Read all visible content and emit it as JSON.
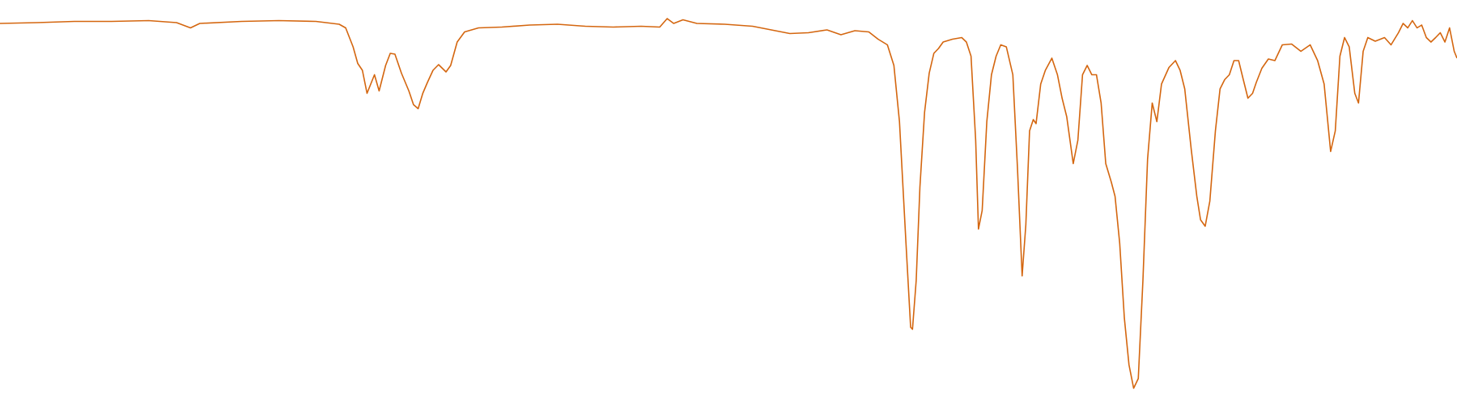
{
  "chart_data": {
    "type": "line",
    "color": "#d4660f",
    "xlim": [
      0,
      1568
    ],
    "ylim": [
      0,
      100
    ],
    "x": [
      0,
      40,
      80,
      120,
      160,
      190,
      205,
      215,
      260,
      300,
      340,
      365,
      372,
      380,
      385,
      390,
      395,
      403,
      408,
      415,
      420,
      425,
      432,
      440,
      445,
      450,
      455,
      460,
      466,
      472,
      480,
      485,
      492,
      500,
      515,
      540,
      570,
      600,
      630,
      660,
      690,
      710,
      718,
      725,
      735,
      750,
      780,
      810,
      830,
      850,
      870,
      890,
      905,
      920,
      935,
      945,
      955,
      962,
      968,
      975,
      980,
      982,
      986,
      990,
      995,
      1000,
      1005,
      1010,
      1015,
      1025,
      1035,
      1040,
      1045,
      1050,
      1053,
      1057,
      1062,
      1067,
      1072,
      1077,
      1083,
      1090,
      1095,
      1100,
      1104,
      1108,
      1112,
      1115,
      1120,
      1125,
      1132,
      1138,
      1143,
      1148,
      1155,
      1160,
      1165,
      1170,
      1175,
      1180,
      1185,
      1190,
      1196,
      1200,
      1205,
      1210,
      1215,
      1220,
      1225,
      1230,
      1235,
      1240,
      1245,
      1250,
      1258,
      1265,
      1270,
      1275,
      1282,
      1288,
      1292,
      1297,
      1302,
      1308,
      1313,
      1318,
      1323,
      1328,
      1333,
      1338,
      1343,
      1348,
      1352,
      1358,
      1365,
      1372,
      1380,
      1390,
      1400,
      1410,
      1418,
      1425,
      1432,
      1437,
      1442,
      1447,
      1452,
      1458,
      1462,
      1467,
      1472,
      1480,
      1490,
      1497,
      1505,
      1510,
      1515,
      1520,
      1525,
      1530,
      1535,
      1540,
      1545,
      1550,
      1555,
      1560,
      1565,
      1568
    ],
    "values": [
      94.2,
      94.4,
      94.7,
      94.7,
      94.9,
      94.4,
      93.1,
      94.2,
      94.7,
      94.9,
      94.7,
      94.0,
      93.1,
      88.4,
      84.3,
      82.6,
      76.9,
      81.5,
      77.5,
      83.8,
      86.8,
      86.6,
      81.9,
      77.5,
      74.1,
      73.1,
      76.9,
      79.6,
      82.6,
      84.0,
      82.2,
      83.8,
      89.6,
      92.1,
      93.1,
      93.3,
      93.8,
      94.0,
      93.5,
      93.3,
      93.5,
      93.3,
      95.4,
      94.2,
      95.1,
      94.2,
      94.0,
      93.5,
      92.6,
      91.7,
      91.9,
      92.6,
      91.4,
      92.4,
      92.1,
      90.3,
      88.9,
      83.8,
      69.9,
      39.8,
      19.0,
      18.5,
      30.6,
      53.7,
      72.2,
      81.9,
      86.8,
      88.0,
      89.6,
      90.3,
      90.7,
      89.6,
      86.1,
      65.3,
      43.3,
      47.9,
      69.9,
      81.5,
      86.1,
      88.9,
      88.4,
      81.5,
      58.3,
      31.7,
      44.4,
      67.6,
      70.4,
      69.4,
      79.2,
      82.6,
      85.6,
      81.5,
      75.7,
      71.1,
      59.5,
      65.3,
      81.5,
      83.8,
      81.5,
      81.5,
      74.5,
      59.5,
      54.9,
      51.4,
      39.8,
      21.3,
      9.7,
      3.9,
      6.3,
      30.6,
      60.6,
      74.5,
      69.9,
      79.2,
      83.3,
      85.0,
      82.6,
      78.0,
      63.0,
      51.4,
      45.6,
      44.0,
      50.2,
      67.6,
      78.0,
      80.3,
      81.5,
      85.0,
      85.0,
      80.3,
      75.7,
      76.9,
      79.6,
      83.1,
      85.4,
      85.0,
      88.9,
      89.1,
      87.3,
      88.9,
      85.0,
      79.2,
      62.5,
      67.6,
      86.1,
      90.7,
      88.4,
      76.9,
      74.5,
      87.3,
      90.7,
      89.8,
      90.7,
      88.9,
      91.9,
      94.2,
      93.1,
      94.9,
      93.1,
      93.8,
      90.7,
      89.6,
      90.7,
      91.9,
      89.6,
      93.1,
      87.3,
      85.6
    ]
  }
}
